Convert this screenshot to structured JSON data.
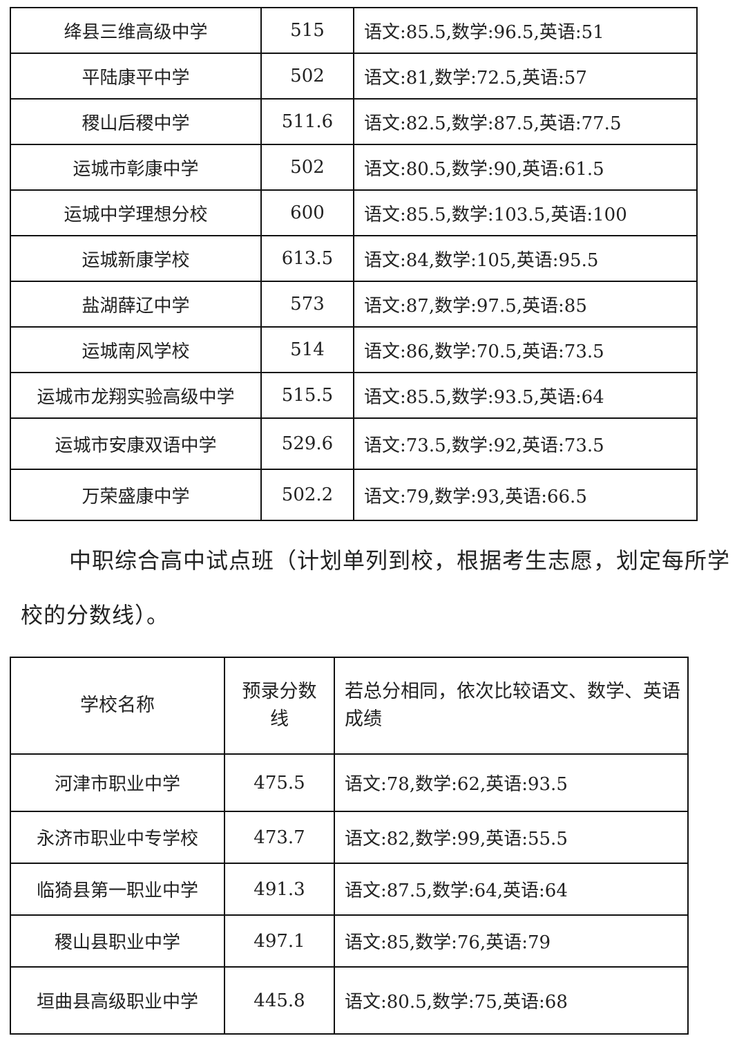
{
  "table1": {
    "rows": [
      {
        "school": "绛县三维高级中学",
        "score": "515",
        "detail": "语文:85.5,数学:96.5,英语:51"
      },
      {
        "school": "平陆康平中学",
        "score": "502",
        "detail": "语文:81,数学:72.5,英语:57"
      },
      {
        "school": "稷山后稷中学",
        "score": "511.6",
        "detail": "语文:82.5,数学:87.5,英语:77.5"
      },
      {
        "school": "运城市彰康中学",
        "score": "502",
        "detail": "语文:80.5,数学:90,英语:61.5"
      },
      {
        "school": "运城中学理想分校",
        "score": "600",
        "detail": "语文:85.5,数学:103.5,英语:100"
      },
      {
        "school": "运城新康学校",
        "score": "613.5",
        "detail": "语文:84,数学:105,英语:95.5"
      },
      {
        "school": "盐湖薛辽中学",
        "score": "573",
        "detail": "语文:87,数学:97.5,英语:85"
      },
      {
        "school": "运城南风学校",
        "score": "514",
        "detail": "语文:86,数学:70.5,英语:73.5"
      },
      {
        "school": "运城市龙翔实验高级中学",
        "score": "515.5",
        "detail": "语文:85.5,数学:93.5,英语:64"
      },
      {
        "school": "运城市安康双语中学",
        "score": "529.6",
        "detail": "语文:73.5,数学:92,英语:73.5"
      },
      {
        "school": "万荣盛康中学",
        "score": "502.2",
        "detail": "语文:79,数学:93,英语:66.5"
      }
    ]
  },
  "paragraph": "中职综合高中试点班（计划单列到校，根据考生志愿，划定每所学校的分数线）。",
  "table2": {
    "headers": {
      "school": "学校名称",
      "score": "预录分数线",
      "detail": "若总分相同，依次比较语文、数学、英语成绩"
    },
    "rows": [
      {
        "school": "河津市职业中学",
        "score": "475.5",
        "detail": "语文:78,数学:62,英语:93.5"
      },
      {
        "school": "永济市职业中专学校",
        "score": "473.7",
        "detail": "语文:82,数学:99,英语:55.5"
      },
      {
        "school": "临猗县第一职业中学",
        "score": "491.3",
        "detail": "语文:87.5,数学:64,英语:64"
      },
      {
        "school": "稷山县职业中学",
        "score": "497.1",
        "detail": "语文:85,数学:76,英语:79"
      },
      {
        "school": "垣曲县高级职业中学",
        "score": "445.8",
        "detail": "语文:80.5,数学:75,英语:68"
      }
    ]
  }
}
